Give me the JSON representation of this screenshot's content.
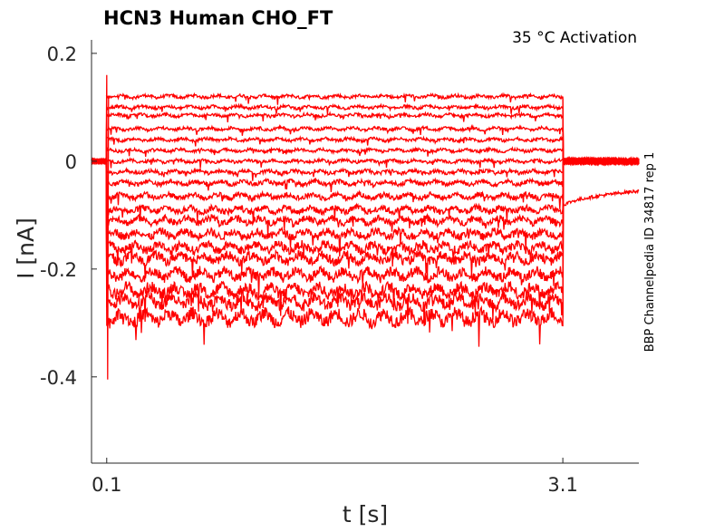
{
  "chart_data": {
    "type": "line",
    "title": "HCN3  Human  CHO_FT",
    "subtitle": "35 °C  Activation",
    "side_label": "BBP Channelpedia ID 34817 rep 1",
    "xlabel": "t [s]",
    "ylabel": "I [nA]",
    "xlim": [
      0.0,
      3.6
    ],
    "ylim": [
      -0.56,
      0.225
    ],
    "x_ticks": [
      {
        "value": 0.1,
        "label": "0.1"
      },
      {
        "value": 3.1,
        "label": "3.1"
      }
    ],
    "y_ticks": [
      {
        "value": 0.2,
        "label": "0.2"
      },
      {
        "value": 0.0,
        "label": "0"
      },
      {
        "value": -0.2,
        "label": "-0.2"
      },
      {
        "value": -0.4,
        "label": "-0.4"
      }
    ],
    "grid": false,
    "line_color": "#ff0000",
    "step_on": 0.1,
    "step_off": 3.1,
    "capacitive_peak": 0.16,
    "capacitive_trough": -0.405,
    "steady_levels": [
      0.12,
      0.1,
      0.085,
      0.06,
      0.04,
      0.02,
      0.0,
      -0.02,
      -0.04,
      -0.065,
      -0.09,
      -0.11,
      -0.135,
      -0.16,
      -0.18,
      -0.21,
      -0.24,
      -0.26,
      -0.29
    ],
    "tail_start": -0.085,
    "tail_end": -0.055
  }
}
